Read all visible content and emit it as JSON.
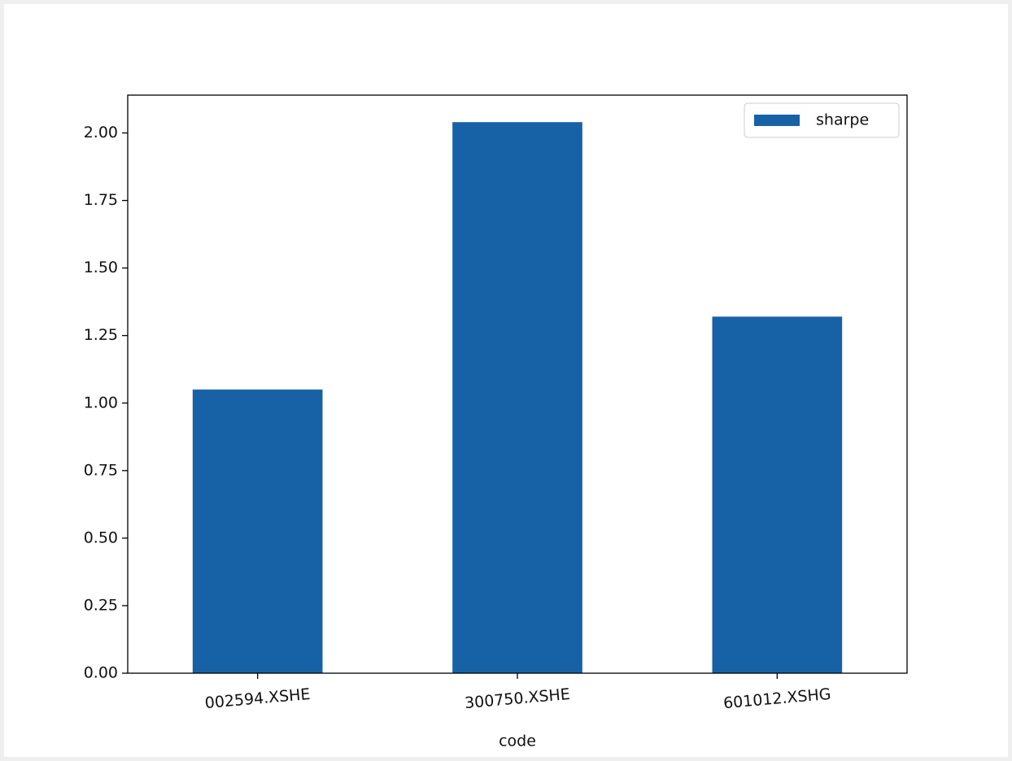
{
  "chart_data": {
    "type": "bar",
    "x_label": "code",
    "categories": [
      "002594.XSHE",
      "300750.XSHE",
      "601012.XSHG"
    ],
    "series": [
      {
        "name": "sharpe",
        "color": "#1761a7",
        "values": [
          1.05,
          2.04,
          1.32
        ]
      }
    ],
    "ylim": [
      0,
      2.14
    ],
    "yticks": [
      {
        "value": 0,
        "label": "0.00"
      },
      {
        "value": 0.25,
        "label": "0.25"
      },
      {
        "value": 0.5,
        "label": "0.50"
      },
      {
        "value": 0.75,
        "label": "0.75"
      },
      {
        "value": 1,
        "label": "1.00"
      },
      {
        "value": 1.25,
        "label": "1.25"
      },
      {
        "value": 1.5,
        "label": "1.50"
      },
      {
        "value": 1.75,
        "label": "1.75"
      },
      {
        "value": 2,
        "label": "2.00"
      }
    ],
    "legend": "upper right",
    "grid": false
  }
}
